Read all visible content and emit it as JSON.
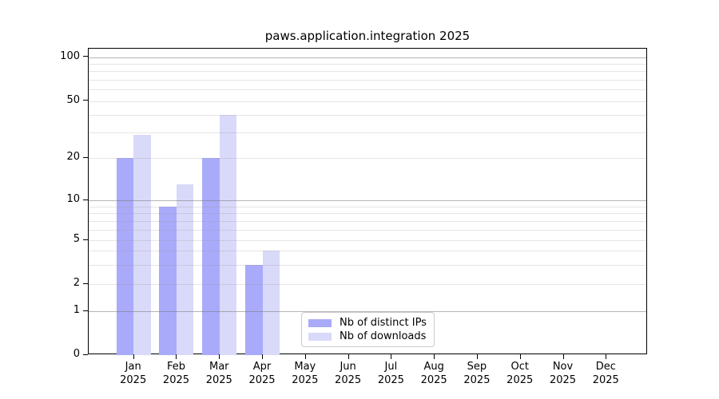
{
  "title": "paws.application.integration 2025",
  "chart_data": {
    "type": "bar",
    "title": "paws.application.integration 2025",
    "x_categories": [
      "Jan",
      "Feb",
      "Mar",
      "Apr",
      "May",
      "Jun",
      "Jul",
      "Aug",
      "Sep",
      "Oct",
      "Nov",
      "Dec"
    ],
    "x_year_label": "2025",
    "series": [
      {
        "name": "Nb of distinct IPs",
        "color": "#aaaafa",
        "values": [
          20,
          9,
          20,
          3,
          null,
          null,
          null,
          null,
          null,
          null,
          null,
          null
        ]
      },
      {
        "name": "Nb of downloads",
        "color": "#d9d9fa",
        "values": [
          29,
          13,
          40,
          4,
          null,
          null,
          null,
          null,
          null,
          null,
          null,
          null
        ]
      }
    ],
    "yscale": "symlog (linear 0-1, log above 1)",
    "ylim": [
      0,
      115
    ],
    "y_tick_values": [
      100,
      50,
      20,
      10,
      5,
      2,
      1,
      0
    ],
    "y_tick_labels": [
      "100",
      "50",
      "20",
      "10",
      "5",
      "2",
      "1",
      "0"
    ],
    "grid": {
      "major_values": [
        1,
        10,
        100
      ],
      "minor_values": [
        2,
        3,
        4,
        5,
        6,
        7,
        8,
        9,
        20,
        30,
        40,
        50,
        60,
        70,
        80,
        90
      ]
    },
    "legend_position": "bottom-center"
  },
  "colors": {
    "distinct_ips": "#aaaafa",
    "downloads": "#d9d9fa",
    "grid_major": "rgba(120,120,120,0.55)",
    "grid_minor": "rgba(150,150,150,0.25)",
    "axis": "#000000",
    "legend_border": "#cccccc",
    "background": "#ffffff"
  }
}
